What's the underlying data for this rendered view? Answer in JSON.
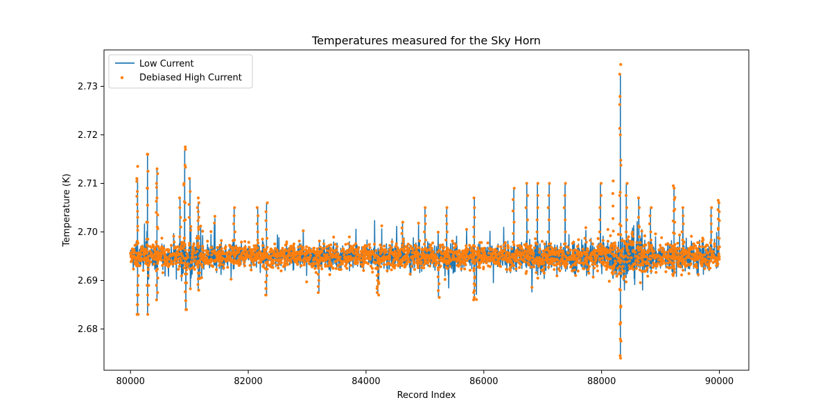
{
  "chart_data": {
    "type": "line",
    "title": "Temperatures measured for the Sky Horn",
    "xlabel": "Record Index",
    "ylabel": "Temperature (K)",
    "xlim": [
      79550,
      90500
    ],
    "ylim": [
      2.6715,
      2.7375
    ],
    "xticks": [
      80000,
      82000,
      84000,
      86000,
      88000,
      90000
    ],
    "xtick_labels": [
      "80000",
      "82000",
      "84000",
      "86000",
      "88000",
      "90000"
    ],
    "yticks": [
      2.68,
      2.69,
      2.7,
      2.71,
      2.72,
      2.73
    ],
    "ytick_labels": [
      "2.68",
      "2.69",
      "2.70",
      "2.71",
      "2.72",
      "2.73"
    ],
    "baseline": 2.695,
    "x_range": [
      80000,
      90000
    ],
    "legend": {
      "position": "upper-left"
    },
    "series": [
      {
        "name": "Low Current",
        "kind": "line",
        "color": "#1f77b4",
        "spikes": [
          {
            "x": 80120,
            "value": 2.711
          },
          {
            "x": 80120,
            "value": 2.683
          },
          {
            "x": 80290,
            "value": 2.716
          },
          {
            "x": 80290,
            "value": 2.683
          },
          {
            "x": 80450,
            "value": 2.713
          },
          {
            "x": 80450,
            "value": 2.686
          },
          {
            "x": 80840,
            "value": 2.707
          },
          {
            "x": 80920,
            "value": 2.717
          },
          {
            "x": 80940,
            "value": 2.684
          },
          {
            "x": 81010,
            "value": 2.711
          },
          {
            "x": 81150,
            "value": 2.706
          },
          {
            "x": 81150,
            "value": 2.688
          },
          {
            "x": 81760,
            "value": 2.705
          },
          {
            "x": 82160,
            "value": 2.705
          },
          {
            "x": 82310,
            "value": 2.706
          },
          {
            "x": 82310,
            "value": 2.687
          },
          {
            "x": 83200,
            "value": 2.6875
          },
          {
            "x": 84200,
            "value": 2.6875
          },
          {
            "x": 84620,
            "value": 2.702
          },
          {
            "x": 85000,
            "value": 2.705
          },
          {
            "x": 85230,
            "value": 2.6865
          },
          {
            "x": 85370,
            "value": 2.705
          },
          {
            "x": 85840,
            "value": 2.707
          },
          {
            "x": 85840,
            "value": 2.686
          },
          {
            "x": 86510,
            "value": 2.709
          },
          {
            "x": 86730,
            "value": 2.71
          },
          {
            "x": 86910,
            "value": 2.71
          },
          {
            "x": 87110,
            "value": 2.71
          },
          {
            "x": 87380,
            "value": 2.71
          },
          {
            "x": 87980,
            "value": 2.71
          },
          {
            "x": 88320,
            "value": 2.7325
          },
          {
            "x": 88320,
            "value": 2.674
          },
          {
            "x": 88420,
            "value": 2.71
          },
          {
            "x": 88630,
            "value": 2.707
          },
          {
            "x": 88830,
            "value": 2.705
          },
          {
            "x": 89230,
            "value": 2.7095
          },
          {
            "x": 89230,
            "value": 2.691
          },
          {
            "x": 89380,
            "value": 2.705
          },
          {
            "x": 89860,
            "value": 2.705
          },
          {
            "x": 89990,
            "value": 2.7065
          }
        ]
      },
      {
        "name": "Debiased High Current",
        "kind": "scatter",
        "color": "#ff7f0e",
        "spikes": [
          {
            "x": 80120,
            "value": 2.7135
          },
          {
            "x": 80120,
            "value": 2.683
          },
          {
            "x": 80290,
            "value": 2.716
          },
          {
            "x": 80450,
            "value": 2.712
          },
          {
            "x": 80920,
            "value": 2.7175
          },
          {
            "x": 80940,
            "value": 2.684
          },
          {
            "x": 81150,
            "value": 2.707
          },
          {
            "x": 82310,
            "value": 2.687
          },
          {
            "x": 84200,
            "value": 2.687
          },
          {
            "x": 85840,
            "value": 2.6865
          },
          {
            "x": 88320,
            "value": 2.7345
          },
          {
            "x": 88320,
            "value": 2.6745
          },
          {
            "x": 88200,
            "value": 2.7105
          },
          {
            "x": 89230,
            "value": 2.709
          },
          {
            "x": 89990,
            "value": 2.706
          }
        ]
      }
    ]
  }
}
